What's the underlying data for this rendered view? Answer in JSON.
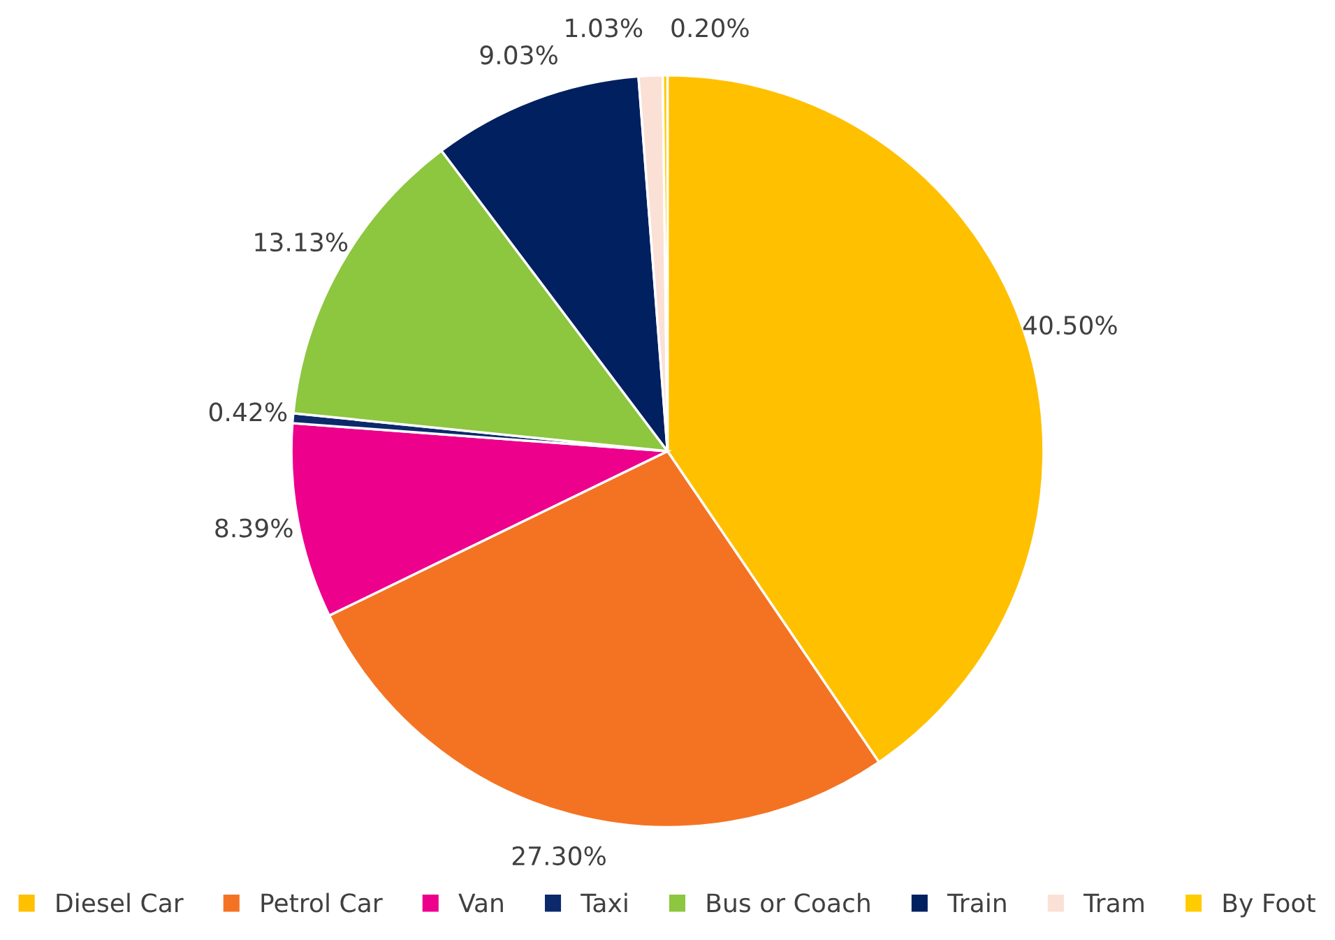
{
  "chart_data": {
    "type": "pie",
    "categories": [
      "Diesel Car",
      "Petrol Car",
      "Van",
      "Taxi",
      "Bus or Coach",
      "Train",
      "Tram",
      "By Foot"
    ],
    "values": [
      40.5,
      27.3,
      8.39,
      0.42,
      13.13,
      9.03,
      1.03,
      0.2
    ],
    "colors": [
      "#ffc000",
      "#f47322",
      "#ec008c",
      "#0c2a6b",
      "#8dc63f",
      "#002060",
      "#fbe0d6",
      "#ffcc00"
    ],
    "value_labels": [
      "40.50%",
      "27.30%",
      "8.39%",
      "0.42%",
      "13.13%",
      "9.03%",
      "1.03%",
      "0.20%"
    ],
    "legend": "bottom"
  }
}
